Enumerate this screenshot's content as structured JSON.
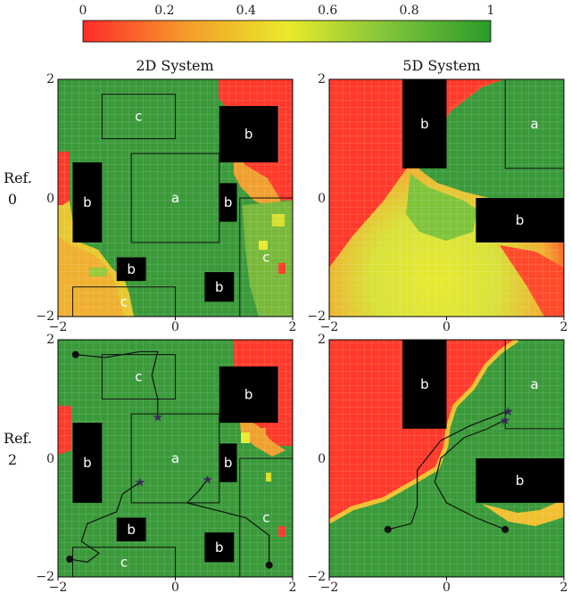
{
  "chart_data": {
    "type": "heatmap",
    "colorbar": {
      "ticks": [
        0,
        0.2,
        0.4,
        0.6,
        0.8,
        1
      ],
      "colors": [
        "#ff2a2a",
        "#f2a02a",
        "#eaea2a",
        "#7fc43a",
        "#2a9a2a"
      ]
    },
    "column_titles": [
      "2D System",
      "5D System"
    ],
    "row_labels": [
      {
        "line1": "Ref.",
        "line2": "0"
      },
      {
        "line1": "Ref.",
        "line2": "2"
      }
    ],
    "axis": {
      "xlim": [
        -2,
        2
      ],
      "ylim": [
        -2,
        2
      ],
      "x_ticks": [
        "−2",
        "0",
        "2"
      ],
      "y_ticks": [
        "2",
        "0",
        "−2"
      ]
    },
    "panels": [
      {
        "name": "2D Ref 0",
        "obstacles": [
          {
            "label": "b",
            "x0": 0.75,
            "x1": 1.75,
            "y0": 0.6,
            "y1": 1.55
          },
          {
            "label": "b",
            "x0": -1.75,
            "x1": -1.25,
            "y0": -0.75,
            "y1": 0.6
          },
          {
            "label": "b",
            "x0": 0.75,
            "x1": 1.05,
            "y0": -0.4,
            "y1": 0.25
          },
          {
            "label": "b",
            "x0": -1.0,
            "x1": -0.5,
            "y0": -1.4,
            "y1": -1.0
          },
          {
            "label": "b",
            "x0": 0.5,
            "x1": 1.0,
            "y0": -1.75,
            "y1": -1.25
          }
        ],
        "regions": [
          {
            "label": "a",
            "x0": -0.75,
            "x1": 0.75,
            "y0": -0.75,
            "y1": 0.75
          },
          {
            "label": "c",
            "x0": -1.25,
            "x1": 0.0,
            "y0": 1.0,
            "y1": 1.75
          },
          {
            "label": "c",
            "x0": 1.1,
            "x1": 2.0,
            "y0": -2.0,
            "y1": 0.0
          },
          {
            "label": "c",
            "x0": -1.75,
            "x1": 0.0,
            "y0": -2.0,
            "y1": -1.5
          }
        ],
        "trajectories": []
      },
      {
        "name": "5D Ref 0",
        "obstacles": [
          {
            "label": "b",
            "x0": -0.75,
            "x1": 0.0,
            "y0": 0.5,
            "y1": 2.0
          },
          {
            "label": "b",
            "x0": 0.5,
            "x1": 2.0,
            "y0": -0.75,
            "y1": 0.0
          }
        ],
        "regions": [
          {
            "label": "a",
            "x0": 1.0,
            "x1": 2.0,
            "y0": 0.5,
            "y1": 2.0
          }
        ],
        "trajectories": []
      },
      {
        "name": "2D Ref 2",
        "obstacles": [
          {
            "label": "b",
            "x0": 0.75,
            "x1": 1.75,
            "y0": 0.6,
            "y1": 1.55
          },
          {
            "label": "b",
            "x0": -1.75,
            "x1": -1.25,
            "y0": -0.75,
            "y1": 0.6
          },
          {
            "label": "b",
            "x0": 0.75,
            "x1": 1.05,
            "y0": -0.4,
            "y1": 0.25
          },
          {
            "label": "b",
            "x0": -1.0,
            "x1": -0.5,
            "y0": -1.4,
            "y1": -1.0
          },
          {
            "label": "b",
            "x0": 0.5,
            "x1": 1.0,
            "y0": -1.75,
            "y1": -1.25
          }
        ],
        "regions": [
          {
            "label": "a",
            "x0": -0.75,
            "x1": 0.75,
            "y0": -0.75,
            "y1": 0.75
          },
          {
            "label": "c",
            "x0": -1.25,
            "x1": 0.0,
            "y0": 1.0,
            "y1": 1.75
          },
          {
            "label": "c",
            "x0": 1.1,
            "x1": 2.0,
            "y0": -2.0,
            "y1": 0.0
          },
          {
            "label": "c",
            "x0": -1.75,
            "x1": 0.0,
            "y0": -2.0,
            "y1": -1.5
          }
        ],
        "trajectories": [
          {
            "start": [
              -1.7,
              1.75
            ],
            "end": [
              -0.3,
              0.7
            ],
            "points": [
              [
                -1.7,
                1.75
              ],
              [
                -1.2,
                1.7
              ],
              [
                -0.6,
                1.8
              ],
              [
                -0.3,
                1.8
              ],
              [
                -0.4,
                1.4
              ],
              [
                -0.3,
                1.0
              ],
              [
                -0.3,
                0.7
              ]
            ]
          },
          {
            "start": [
              -1.8,
              -1.7
            ],
            "end": [
              -0.6,
              -0.4
            ],
            "points": [
              [
                -1.8,
                -1.7
              ],
              [
                -1.5,
                -1.75
              ],
              [
                -1.3,
                -1.6
              ],
              [
                -1.6,
                -1.4
              ],
              [
                -1.5,
                -1.1
              ],
              [
                -1.0,
                -0.9
              ],
              [
                -0.9,
                -0.6
              ],
              [
                -0.6,
                -0.4
              ]
            ]
          },
          {
            "start": [
              1.6,
              -1.8
            ],
            "end": [
              0.55,
              -0.35
            ],
            "points": [
              [
                1.6,
                -1.8
              ],
              [
                1.6,
                -1.3
              ],
              [
                1.2,
                -1.0
              ],
              [
                0.8,
                -0.9
              ],
              [
                0.2,
                -0.75
              ],
              [
                0.4,
                -0.55
              ],
              [
                0.55,
                -0.35
              ]
            ]
          }
        ]
      },
      {
        "name": "5D Ref 2",
        "obstacles": [
          {
            "label": "b",
            "x0": -0.75,
            "x1": 0.0,
            "y0": 0.5,
            "y1": 2.0
          },
          {
            "label": "b",
            "x0": 0.5,
            "x1": 2.0,
            "y0": -0.75,
            "y1": 0.0
          }
        ],
        "regions": [
          {
            "label": "a",
            "x0": 1.0,
            "x1": 2.0,
            "y0": 0.5,
            "y1": 2.0
          }
        ],
        "trajectories": [
          {
            "start": [
              -1.0,
              -1.2
            ],
            "end": [
              1.05,
              0.8
            ],
            "points": [
              [
                -1.0,
                -1.2
              ],
              [
                -0.6,
                -1.1
              ],
              [
                -0.5,
                -0.8
              ],
              [
                -0.5,
                -0.2
              ],
              [
                -0.1,
                0.3
              ],
              [
                0.4,
                0.55
              ],
              [
                1.05,
                0.8
              ]
            ]
          },
          {
            "start": [
              1.0,
              -1.2
            ],
            "end": [
              1.0,
              0.65
            ],
            "points": [
              [
                1.0,
                -1.2
              ],
              [
                0.5,
                -1.0
              ],
              [
                0.0,
                -0.75
              ],
              [
                -0.2,
                -0.4
              ],
              [
                -0.1,
                0.0
              ],
              [
                0.3,
                0.35
              ],
              [
                0.7,
                0.5
              ],
              [
                1.0,
                0.65
              ]
            ]
          }
        ]
      }
    ]
  }
}
